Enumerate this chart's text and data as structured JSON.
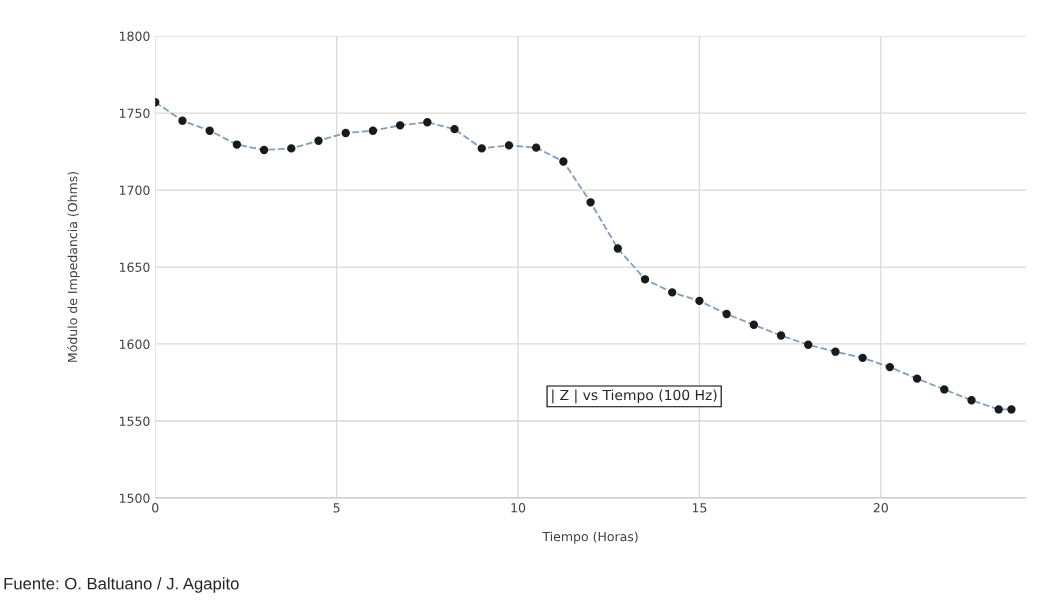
{
  "chart_data": {
    "type": "line",
    "xlabel": "Tiempo (Horas)",
    "ylabel": "Módulo de Impedancia (Ohms)",
    "x": [
      0,
      0.75,
      1.5,
      2.25,
      3,
      3.75,
      4.5,
      5.25,
      6,
      6.75,
      7.5,
      8.25,
      9,
      9.75,
      10.5,
      11.25,
      12,
      12.75,
      13.5,
      14.25,
      15,
      15.75,
      16.5,
      17.25,
      18,
      18.75,
      19.5,
      20.25,
      21,
      21.75,
      22.5,
      23.25,
      23.6
    ],
    "series": [
      {
        "color": "#1a1a1a",
        "values": [
          1757,
          1745,
          1738.5,
          1729.5,
          1726,
          1727,
          1732,
          1737,
          1738.5,
          1742,
          1744,
          1739.5,
          1727,
          1729,
          1727.5,
          1718.5,
          1692,
          1662,
          1642,
          1633.5,
          1628,
          1619.5,
          1612.5,
          1605.5,
          1599.5,
          1595,
          1591,
          1585,
          1577.5,
          1570.5,
          1563.5,
          1557.5,
          1557.5
        ]
      }
    ],
    "xlim": [
      0,
      24
    ],
    "xticks": [
      0,
      5,
      10,
      15,
      20
    ],
    "ylim": [
      1500,
      1800
    ],
    "yticks": [
      1500,
      1550,
      1600,
      1650,
      1700,
      1750,
      1800
    ],
    "grid": true,
    "marker": "circle",
    "line_style": "dashed",
    "legend": false,
    "annotations": [
      "| Z | vs Tiempo (100 Hz)",
      "Fuente: O. Baltuano / J. Agapito"
    ]
  }
}
